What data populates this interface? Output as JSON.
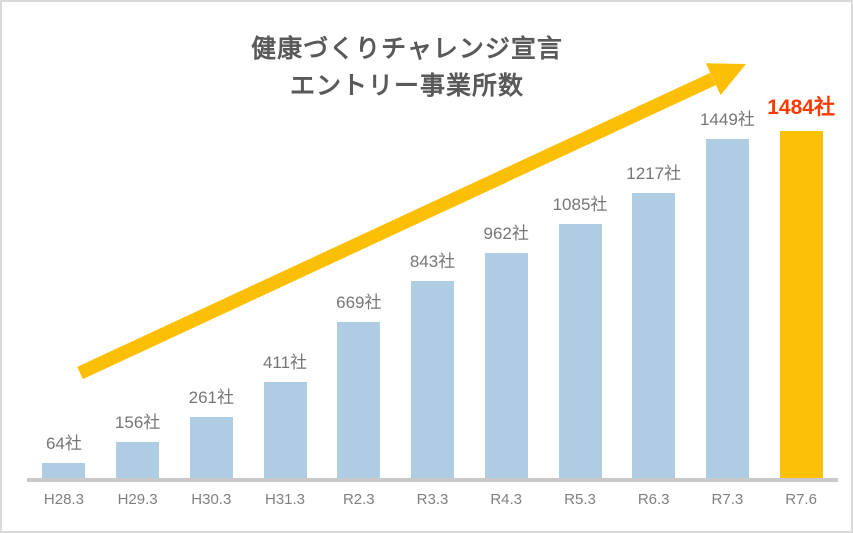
{
  "page": {
    "background": "#ffffff",
    "border_color": "#d9d9d9"
  },
  "title": {
    "line1": "健康づくりチャレンジ宣言",
    "line2": "エントリー事業所数",
    "color": "#595959"
  },
  "chart_data": {
    "type": "bar",
    "title": "健康づくりチャレンジ宣言 エントリー事業所数",
    "categories": [
      "H28.3",
      "H29.3",
      "H30.3",
      "H31.3",
      "R2.3",
      "R3.3",
      "R4.3",
      "R5.3",
      "R6.3",
      "R7.3",
      "R7.6"
    ],
    "values": [
      64,
      156,
      261,
      411,
      669,
      843,
      962,
      1085,
      1217,
      1449,
      1484
    ],
    "data_labels": [
      "64社",
      "156社",
      "261社",
      "411社",
      "669社",
      "843社",
      "962社",
      "1085社",
      "1217社",
      "1449社",
      "1484社"
    ],
    "unit_suffix": "社",
    "xlabel": "",
    "ylabel": "",
    "ylim": [
      0,
      1500
    ],
    "grid": false,
    "legend": false,
    "y_axis_visible": false,
    "highlight_index": 10,
    "styles": {
      "bar_color": "#aecde2",
      "highlight_bar_color": "#fcc107",
      "data_label_color": "#767676",
      "highlight_label_color": "#fa3b00",
      "axis_tick_color": "#7f7f7f",
      "axis_line_color": "#c9c9c9",
      "arrow_color": "#fcbf05"
    },
    "annotations": [
      {
        "type": "arrow",
        "description": "thick upward growth arrow from lower-left to upper-right",
        "color": "#fcbf05"
      }
    ]
  }
}
